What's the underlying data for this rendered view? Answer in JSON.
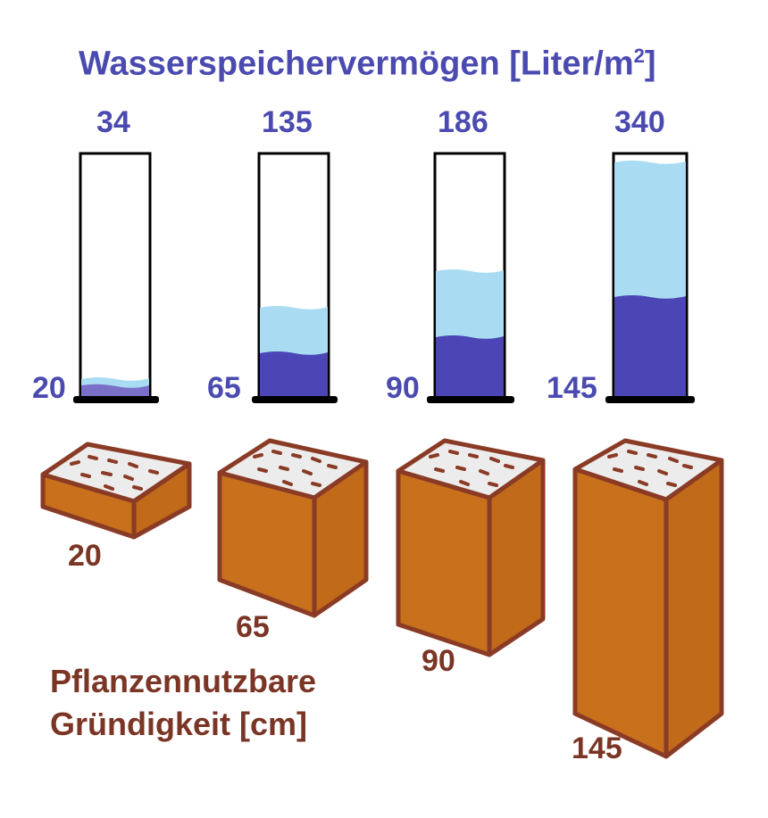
{
  "title": "Wasserspeichervermögen [Liter/m",
  "title_sup": "2",
  "title_close": "]",
  "columns": [
    {
      "capacity": "34",
      "depth_label": "20",
      "block_label": "20"
    },
    {
      "capacity": "135",
      "depth_label": "65",
      "block_label": "65"
    },
    {
      "capacity": "186",
      "depth_label": "90",
      "block_label": "90"
    },
    {
      "capacity": "340",
      "depth_label": "145",
      "block_label": "145"
    }
  ],
  "caption": {
    "line1": "Pflanzennutzbare",
    "line2": "Gründigkeit [cm]"
  },
  "colors": {
    "title_blue": "#4a4ab0",
    "dark_water": "#4b45b5",
    "light_water": "#a9dcf2",
    "soil": "#c8701c",
    "soil_edge": "#8a3b25",
    "topsoil": "#ececec",
    "label_brown": "#7a3525"
  }
}
